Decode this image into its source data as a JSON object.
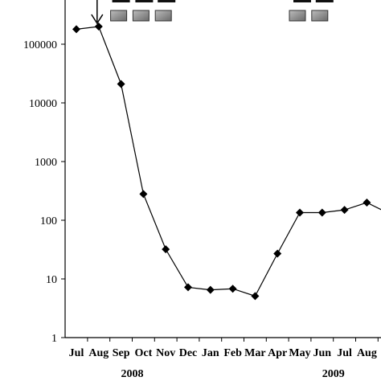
{
  "chart_data": {
    "type": "line",
    "scale": "log",
    "title": "",
    "xlabel": "",
    "ylabel": "",
    "ylim": [
      1,
      1000000
    ],
    "grid": false,
    "legend": "none",
    "categories": [
      "Jul",
      "Aug",
      "Sep",
      "Oct",
      "Nov",
      "Dec",
      "Jan",
      "Feb",
      "Mar",
      "Apr",
      "May",
      "Jun",
      "Jul",
      "Aug"
    ],
    "y_tick_labels": [
      "1",
      "10",
      "100",
      "1000",
      "10000",
      "100000"
    ],
    "year_labels": [
      "2008",
      "2009"
    ],
    "series": [
      {
        "marker": "diamond",
        "color": "#000000",
        "points": [
          {
            "x": "Jul",
            "y": 180000
          },
          {
            "x": "Aug",
            "y": 200000
          },
          {
            "x": "Sep",
            "y": 21000
          },
          {
            "x": "Oct",
            "y": 280
          },
          {
            "x": "Nov",
            "y": 32
          },
          {
            "x": "Dec",
            "y": 7.2
          },
          {
            "x": "Jan",
            "y": 6.5
          },
          {
            "x": "Feb",
            "y": 6.8
          },
          {
            "x": "Mar",
            "y": 5.1
          },
          {
            "x": "Apr",
            "y": 27
          },
          {
            "x": "May",
            "y": 135
          },
          {
            "x": "Jun",
            "y": 135
          },
          {
            "x": "Jul",
            "y": 150
          },
          {
            "x": "Aug",
            "y": 200
          },
          {
            "x": "",
            "y": 130
          }
        ]
      }
    ],
    "annotations": {
      "arrow_at": "Aug",
      "treatment_boxes": [
        "Sep",
        "Oct",
        "Nov",
        "May",
        "Jun"
      ],
      "box_color": "#888888"
    }
  }
}
